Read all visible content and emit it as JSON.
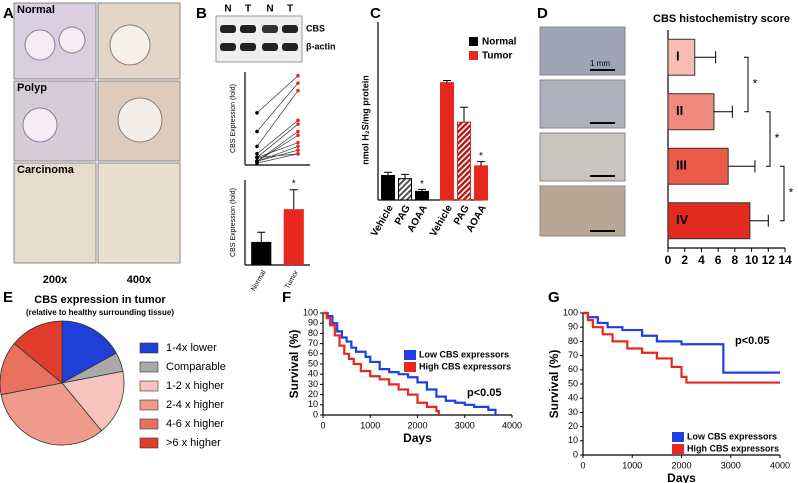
{
  "panel_labels": [
    "A",
    "B",
    "C",
    "D",
    "E",
    "F",
    "G"
  ],
  "panel_a": {
    "row_labels": [
      "Normal",
      "Polyp",
      "Carcinoma"
    ],
    "col_labels": [
      "200x",
      "400x"
    ]
  },
  "panel_b_blot": {
    "lanes": [
      "N",
      "T",
      "N",
      "T"
    ],
    "bands": [
      "CBS",
      "β-actin"
    ]
  },
  "panel_d_scale": "1 mm",
  "chart_data": [
    {
      "type": "paired",
      "ylabel": "CBS Expression (fold)",
      "colors": [
        "#000000",
        "#e8281e"
      ],
      "ylim": [
        0,
        25
      ],
      "pairs": [
        [
          14,
          24
        ],
        [
          9,
          22
        ],
        [
          5,
          20
        ],
        [
          3,
          12
        ],
        [
          2,
          11
        ],
        [
          1,
          9
        ],
        [
          1,
          8
        ],
        [
          2,
          6
        ],
        [
          1,
          5
        ],
        [
          0.5,
          3
        ],
        [
          1,
          4
        ],
        [
          2,
          3
        ]
      ]
    },
    {
      "type": "bar",
      "ylabel": "CBS Expression (fold)",
      "categories": [
        "Normal",
        "Tumor"
      ],
      "values": [
        1.9,
        4.6
      ],
      "errors": [
        0.8,
        1.6
      ],
      "colors": [
        "#000000",
        "#e8281e"
      ],
      "ylim": [
        0,
        7
      ],
      "annotation": "*"
    },
    {
      "type": "grouped",
      "ylabel": "nmol H₂S/mg protein",
      "categories": [
        "Vehicle",
        "PAG",
        "AOAA",
        "Vehicle",
        "PAG",
        "AOAA"
      ],
      "ylim": [
        0,
        120
      ],
      "legend": "upper right",
      "annotations": [
        "*",
        "*"
      ],
      "series": [
        {
          "name": "Normal",
          "color": "#000000",
          "values": [
            23,
            20,
            8,
            null,
            null,
            null
          ],
          "errors": [
            3,
            4,
            2,
            null,
            null,
            null
          ]
        },
        {
          "name": "Tumor",
          "color": "#e8281e",
          "values": [
            null,
            null,
            null,
            110,
            73,
            32
          ],
          "errors": [
            null,
            null,
            null,
            2,
            14,
            4
          ]
        }
      ]
    },
    {
      "type": "hbar",
      "title": "CBS histochemistry score",
      "categories": [
        "I",
        "II",
        "III",
        "IV"
      ],
      "values": [
        3.2,
        5.5,
        7.2,
        9.8
      ],
      "errors": [
        2.5,
        2.2,
        3.2,
        2.2
      ],
      "colors": [
        "#f7bdb5",
        "#f08a7c",
        "#ea5b4a",
        "#e02b1e"
      ],
      "xlim": [
        0,
        14
      ],
      "xticks": [
        0,
        2,
        4,
        6,
        8,
        10,
        12,
        14
      ],
      "significance": [
        "*",
        "*",
        "*"
      ]
    },
    {
      "type": "pie",
      "title": "CBS expression in tumor",
      "subtitle": "(relative to healthy surrounding tissue)",
      "categories": [
        "1-4x lower",
        "Comparable",
        "1-2 x higher",
        "2-4 x higher",
        "4-6 x higher",
        ">6 x higher"
      ],
      "values": [
        17,
        5,
        17,
        33,
        14,
        14
      ],
      "colors": [
        "#1f3fd6",
        "#a9a9a9",
        "#f6c4bc",
        "#ef9a8b",
        "#e8705e",
        "#e03c2c"
      ]
    },
    {
      "type": "km",
      "xlabel": "Days",
      "ylabel": "Survival (%)",
      "xlim": [
        0,
        4000
      ],
      "ylim": [
        0,
        100
      ],
      "xticks": [
        0,
        1000,
        2000,
        3000,
        4000
      ],
      "yticks": [
        0,
        10,
        20,
        30,
        40,
        50,
        60,
        70,
        80,
        90,
        100
      ],
      "legend": "upper right",
      "annotation": "p<0.05",
      "series": [
        {
          "name": "Low CBS expressors",
          "color": "#1f3fe6",
          "x": [
            0,
            100,
            200,
            300,
            400,
            500,
            600,
            700,
            900,
            1000,
            1200,
            1400,
            1600,
            1800,
            2000,
            2200,
            2400,
            2600,
            2800,
            3000,
            3200,
            3500,
            3650
          ],
          "values": [
            100,
            97,
            90,
            82,
            76,
            72,
            66,
            62,
            57,
            52,
            45,
            42,
            40,
            37,
            32,
            25,
            18,
            14,
            12,
            10,
            8,
            5,
            0
          ]
        },
        {
          "name": "High CBS expressors",
          "color": "#e8281e",
          "x": [
            0,
            80,
            150,
            250,
            350,
            450,
            550,
            650,
            800,
            1000,
            1200,
            1400,
            1600,
            1800,
            2000,
            2200,
            2400,
            2450
          ],
          "values": [
            100,
            95,
            88,
            78,
            68,
            60,
            55,
            50,
            43,
            38,
            35,
            30,
            25,
            20,
            12,
            8,
            4,
            0
          ]
        }
      ]
    },
    {
      "type": "km",
      "xlabel": "Days",
      "ylabel": "Survival (%)",
      "xlim": [
        0,
        4000
      ],
      "ylim": [
        0,
        100
      ],
      "xticks": [
        0,
        1000,
        2000,
        3000,
        4000
      ],
      "yticks": [
        0,
        10,
        20,
        30,
        40,
        50,
        60,
        70,
        80,
        90,
        100
      ],
      "legend": "lower right",
      "annotation": "p<0.05",
      "series": [
        {
          "name": "Low CBS expressors",
          "color": "#1f3fe6",
          "x": [
            0,
            100,
            300,
            500,
            800,
            1200,
            1500,
            2000,
            2850,
            4000
          ],
          "values": [
            100,
            97,
            93,
            90,
            88,
            84,
            80,
            78,
            58,
            58
          ]
        },
        {
          "name": "High CBS expressors",
          "color": "#e8281e",
          "x": [
            0,
            100,
            200,
            400,
            600,
            900,
            1200,
            1500,
            1800,
            2000,
            2100,
            4000
          ],
          "values": [
            100,
            95,
            90,
            85,
            80,
            75,
            72,
            68,
            62,
            55,
            51,
            51
          ]
        }
      ]
    }
  ]
}
